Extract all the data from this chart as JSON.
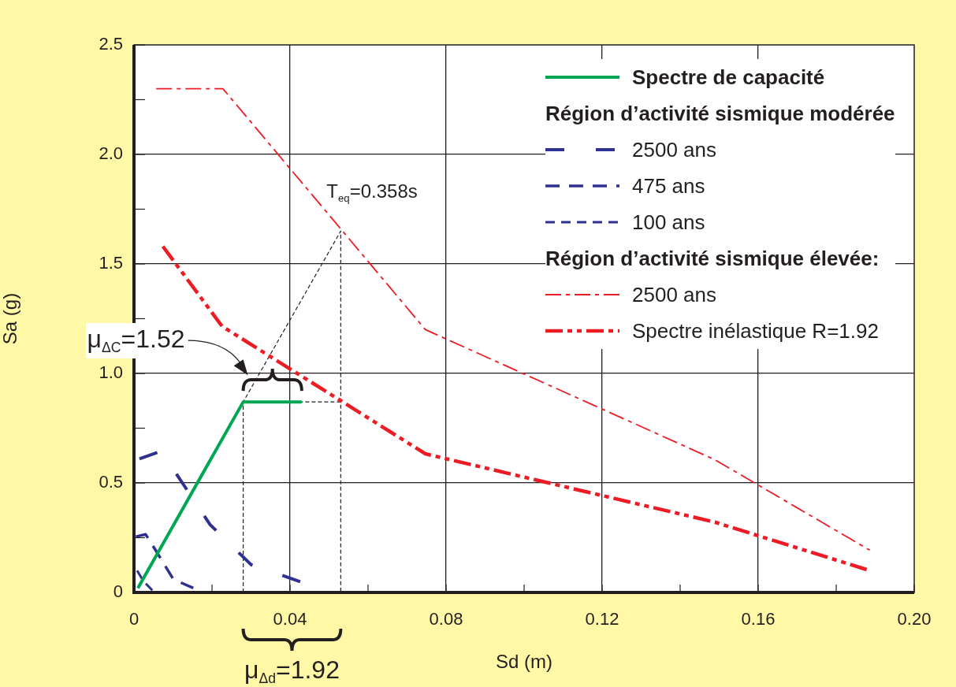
{
  "chart_data": {
    "type": "line",
    "xlabel": "Sd (m)",
    "ylabel": "Sa (g)",
    "xlim": [
      0,
      0.2
    ],
    "ylim": [
      0,
      2.5
    ],
    "xticks": [
      0,
      {
        "value": 0.02,
        "label": null
      },
      0.04,
      {
        "value": 0.06,
        "label": null
      },
      0.08,
      {
        "value": 0.1,
        "label": null
      },
      0.12,
      {
        "value": 0.14,
        "label": null
      },
      0.16,
      {
        "value": 0.18,
        "label": null
      },
      {
        "value": 0.2,
        "label": "0.20"
      }
    ],
    "yticks": [
      0,
      {
        "value": 0.25,
        "label": null
      },
      0.5,
      {
        "value": 0.75,
        "label": null
      },
      {
        "value": 1,
        "label": "1.0"
      },
      {
        "value": 1.25,
        "label": null
      },
      1.5,
      {
        "value": 1.75,
        "label": null
      },
      {
        "value": 2,
        "label": "2.0"
      },
      {
        "value": 2.25,
        "label": null
      },
      2.5
    ],
    "grid": true,
    "legend": "top right",
    "series": [
      {
        "name": "Spectre de capacité",
        "color": "#00a651",
        "line_style": "solid",
        "x": [
          0.001,
          0.028,
          0.043
        ],
        "values": [
          0.02,
          0.87,
          0.87
        ]
      },
      {
        "name": "2500 ans",
        "color": "#2e3192",
        "line_style": "dashed",
        "x": [
          0.0014,
          0.007,
          0.0195,
          0.03,
          0.043
        ],
        "values": [
          0.61,
          0.645,
          0.31,
          0.127,
          0.047
        ]
      },
      {
        "name": "475 ans",
        "color": "#2e3192",
        "line_style": "dashed",
        "x": [
          0.0005,
          0.003,
          0.006,
          0.0101,
          0.0152
        ],
        "values": [
          0.255,
          0.265,
          0.18,
          0.06,
          0.02
        ]
      },
      {
        "name": "100 ans",
        "color": "#2e3192",
        "line_style": "dashed",
        "x": [
          0.0008,
          0.0025,
          0.0047
        ],
        "values": [
          0.1,
          0.05,
          0.01
        ]
      },
      {
        "name": "2500 ans",
        "color": "#ed1c24",
        "line_style": "dashed",
        "x": [
          0.0057,
          0.0228,
          0.0747,
          0.1489,
          0.1886
        ],
        "values": [
          2.3,
          2.3,
          1.2,
          0.606,
          0.193
        ]
      },
      {
        "name": "Spectre inélastique R=1.92",
        "color": "#ed1c24",
        "line_style": "dashed",
        "x": [
          0.0074,
          0.0226,
          0.0747,
          0.1489,
          0.1886
        ],
        "values": [
          1.58,
          1.215,
          0.633,
          0.321,
          0.1
        ]
      },
      {
        "color": "#231f20",
        "line_style": "dashed",
        "x": [
          0.028,
          0.028,
          0.053,
          0.053
        ],
        "values": [
          0,
          0.87,
          1.65,
          0
        ]
      },
      {
        "color": "#231f20",
        "line_style": "dashed",
        "x": [
          0.053,
          0.043
        ],
        "values": [
          0.87,
          0.87
        ]
      }
    ],
    "annotations": [
      {
        "text": "T$_{eq}$=0.358s",
        "x": 0.053,
        "y": 1.65
      },
      {
        "text": "μ$_{ΔC}$=1.52",
        "x": 0.028,
        "y": 0.87
      },
      "μ$_{Δd}$=1.92",
      "Région d’activité sismique modérée",
      "Région d’activité sismique élevée:"
    ]
  }
}
